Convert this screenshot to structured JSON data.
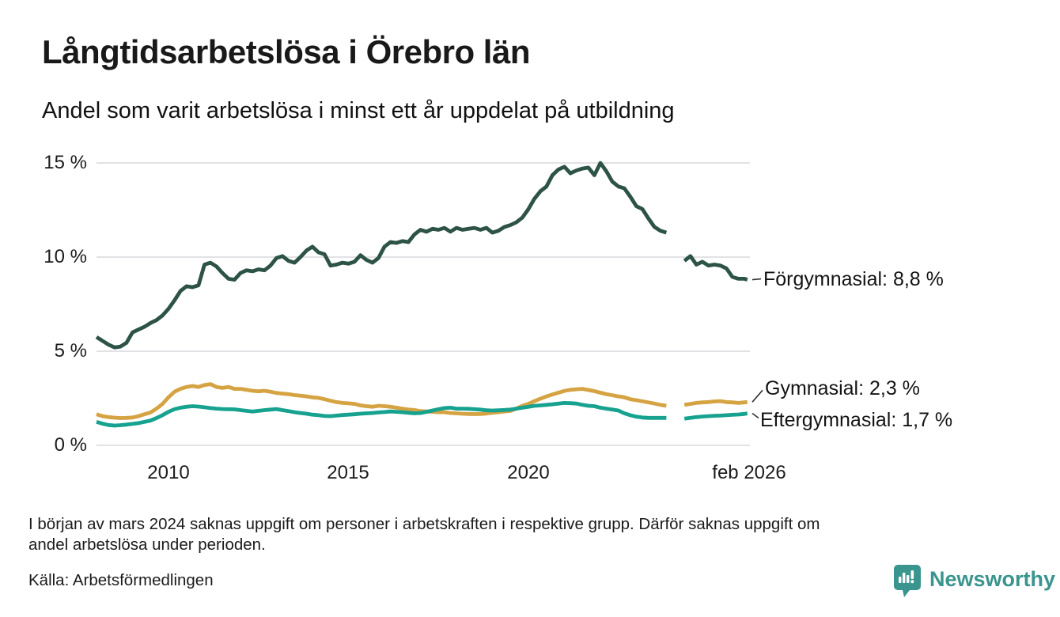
{
  "header": {
    "title": "Långtidsarbetslösa i Örebro län",
    "subtitle": "Andel som varit arbetslösa i minst ett år uppdelat på utbildning"
  },
  "chart_data": {
    "type": "line",
    "title": "Långtidsarbetslösa i Örebro län",
    "subtitle": "Andel som varit arbetslösa i minst ett år uppdelat på utbildning",
    "unit": "%",
    "ylim": [
      0,
      15
    ],
    "xlim": [
      2008,
      2026.25
    ],
    "grid": "horizontal-only",
    "y_ticks": [
      0,
      5,
      10,
      15
    ],
    "y_tick_labels": [
      "0 %",
      "5 %",
      "10 %",
      "15 %"
    ],
    "x_tick_positions": [
      2010,
      2015,
      2020,
      2026.083
    ],
    "x_tick_labels": [
      "2010",
      "2015",
      "2020",
      "feb 2026"
    ],
    "data_gap": "värden saknas kring mars 2024",
    "x": [
      2008,
      2008.167,
      2008.333,
      2008.5,
      2008.667,
      2008.833,
      2009,
      2009.167,
      2009.333,
      2009.5,
      2009.667,
      2009.833,
      2010,
      2010.167,
      2010.333,
      2010.5,
      2010.667,
      2010.833,
      2011,
      2011.167,
      2011.333,
      2011.5,
      2011.667,
      2011.833,
      2012,
      2012.167,
      2012.333,
      2012.5,
      2012.667,
      2012.833,
      2013,
      2013.167,
      2013.333,
      2013.5,
      2013.667,
      2013.833,
      2014,
      2014.167,
      2014.333,
      2014.5,
      2014.667,
      2014.833,
      2015,
      2015.167,
      2015.333,
      2015.5,
      2015.667,
      2015.833,
      2016,
      2016.167,
      2016.333,
      2016.5,
      2016.667,
      2016.833,
      2017,
      2017.167,
      2017.333,
      2017.5,
      2017.667,
      2017.833,
      2018,
      2018.167,
      2018.333,
      2018.5,
      2018.667,
      2018.833,
      2019,
      2019.167,
      2019.333,
      2019.5,
      2019.667,
      2019.833,
      2020,
      2020.167,
      2020.333,
      2020.5,
      2020.667,
      2020.833,
      2021,
      2021.167,
      2021.333,
      2021.5,
      2021.667,
      2021.833,
      2022,
      2022.167,
      2022.333,
      2022.5,
      2022.667,
      2022.833,
      2023,
      2023.167,
      2023.333,
      2023.5,
      2023.667,
      2023.833,
      2024,
      2024.167,
      2024.333,
      2024.5,
      2024.667,
      2024.833,
      2025,
      2025.167,
      2025.333,
      2025.5,
      2025.667,
      2025.833,
      2026,
      2026.083
    ],
    "series": [
      {
        "name": "Förgymnasial",
        "annotation": "Förgymnasial: 8,8 %",
        "last_value": 8.8,
        "color": "#2d5347",
        "values": [
          5.75,
          5.55,
          5.35,
          5.2,
          5.25,
          5.45,
          6.0,
          6.15,
          6.3,
          6.5,
          6.65,
          6.9,
          7.25,
          7.7,
          8.2,
          8.45,
          8.4,
          8.5,
          9.6,
          9.7,
          9.5,
          9.15,
          8.85,
          8.8,
          9.15,
          9.3,
          9.25,
          9.35,
          9.3,
          9.55,
          9.95,
          10.05,
          9.8,
          9.7,
          10.0,
          10.35,
          10.55,
          10.25,
          10.15,
          9.55,
          9.6,
          9.7,
          9.65,
          9.75,
          10.1,
          9.85,
          9.7,
          9.95,
          10.55,
          10.8,
          10.75,
          10.85,
          10.8,
          11.2,
          11.45,
          11.35,
          11.5,
          11.45,
          11.55,
          11.35,
          11.55,
          11.45,
          11.5,
          11.55,
          11.45,
          11.55,
          11.3,
          11.4,
          11.6,
          11.7,
          11.85,
          12.1,
          12.55,
          13.1,
          13.5,
          13.75,
          14.35,
          14.65,
          14.8,
          14.45,
          14.6,
          14.7,
          14.75,
          14.35,
          15.0,
          14.55,
          14.0,
          13.75,
          13.65,
          13.2,
          12.7,
          12.55,
          12.05,
          11.6,
          11.4,
          11.3,
          null,
          null,
          9.8,
          10.05,
          9.6,
          9.75,
          9.55,
          9.6,
          9.55,
          9.4,
          8.95,
          8.85,
          8.85,
          8.8
        ]
      },
      {
        "name": "Gymnasial",
        "annotation": "Gymnasial: 2,3 %",
        "last_value": 2.3,
        "color": "#d5a342",
        "values": [
          1.65,
          1.55,
          1.5,
          1.47,
          1.45,
          1.46,
          1.48,
          1.55,
          1.65,
          1.75,
          1.95,
          2.2,
          2.55,
          2.85,
          3.0,
          3.1,
          3.15,
          3.1,
          3.2,
          3.25,
          3.1,
          3.05,
          3.1,
          3.0,
          3.0,
          2.95,
          2.9,
          2.87,
          2.9,
          2.85,
          2.78,
          2.75,
          2.72,
          2.67,
          2.64,
          2.6,
          2.55,
          2.52,
          2.45,
          2.37,
          2.3,
          2.25,
          2.23,
          2.2,
          2.12,
          2.08,
          2.05,
          2.1,
          2.08,
          2.05,
          2.0,
          1.95,
          1.9,
          1.88,
          1.82,
          1.8,
          1.78,
          1.76,
          1.76,
          1.72,
          1.7,
          1.68,
          1.67,
          1.66,
          1.67,
          1.69,
          1.73,
          1.76,
          1.8,
          1.83,
          1.95,
          2.1,
          2.2,
          2.35,
          2.48,
          2.6,
          2.7,
          2.8,
          2.89,
          2.95,
          2.98,
          3.0,
          2.94,
          2.88,
          2.8,
          2.72,
          2.66,
          2.6,
          2.55,
          2.45,
          2.4,
          2.34,
          2.28,
          2.22,
          2.15,
          2.1,
          null,
          null,
          2.15,
          2.2,
          2.25,
          2.28,
          2.3,
          2.33,
          2.35,
          2.3,
          2.28,
          2.25,
          2.28,
          2.3
        ]
      },
      {
        "name": "Eftergymnasial",
        "annotation": "Eftergymnasial: 1,7 %",
        "last_value": 1.7,
        "color": "#16a28f",
        "values": [
          1.25,
          1.15,
          1.08,
          1.05,
          1.07,
          1.1,
          1.14,
          1.18,
          1.25,
          1.32,
          1.45,
          1.6,
          1.78,
          1.92,
          2.0,
          2.05,
          2.08,
          2.06,
          2.02,
          1.98,
          1.95,
          1.93,
          1.92,
          1.91,
          1.87,
          1.83,
          1.8,
          1.83,
          1.87,
          1.9,
          1.93,
          1.87,
          1.82,
          1.76,
          1.72,
          1.68,
          1.63,
          1.6,
          1.56,
          1.55,
          1.58,
          1.61,
          1.63,
          1.65,
          1.68,
          1.7,
          1.72,
          1.75,
          1.77,
          1.8,
          1.78,
          1.76,
          1.73,
          1.7,
          1.72,
          1.78,
          1.85,
          1.92,
          1.98,
          2.0,
          1.95,
          1.95,
          1.94,
          1.92,
          1.9,
          1.86,
          1.85,
          1.86,
          1.88,
          1.9,
          1.95,
          2.0,
          2.05,
          2.1,
          2.12,
          2.15,
          2.18,
          2.22,
          2.25,
          2.24,
          2.22,
          2.15,
          2.1,
          2.08,
          2.0,
          1.95,
          1.9,
          1.85,
          1.7,
          1.6,
          1.52,
          1.48,
          1.46,
          1.46,
          1.46,
          1.46,
          null,
          null,
          1.42,
          1.46,
          1.5,
          1.53,
          1.55,
          1.57,
          1.58,
          1.6,
          1.62,
          1.64,
          1.67,
          1.7
        ]
      }
    ]
  },
  "footer": {
    "note_line1": "I början av mars 2024 saknas uppgift om personer i arbetskraften i respektive grupp. Därför saknas uppgift om",
    "note_line2": "andel arbetslösa under perioden.",
    "source": "Källa: Arbetsförmedlingen",
    "brand": "Newsworthy"
  },
  "colors": {
    "grid": "#e2e2e6",
    "axis_text": "#1c1c1c",
    "connector": "#333333",
    "brand_teal": "#3a958e"
  }
}
